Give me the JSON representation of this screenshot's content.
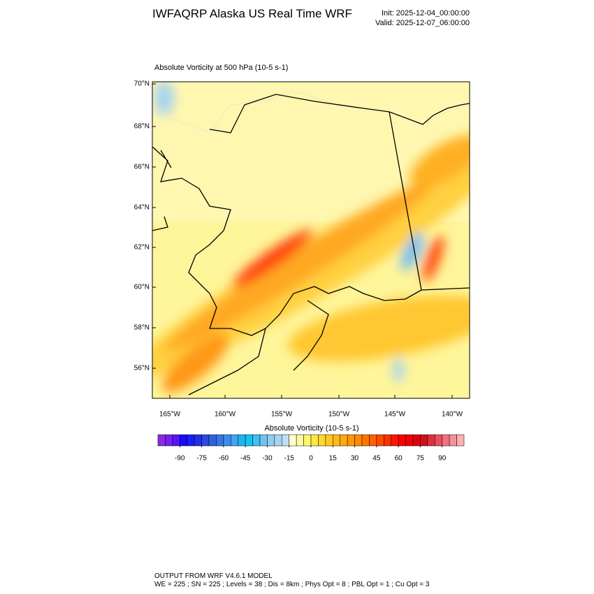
{
  "header": {
    "title": "IWFAQRP Alaska US Real Time WRF",
    "init": "Init: 2025-12-04_00:00:00",
    "valid": "Valid: 2025-12-07_06:00:00"
  },
  "map": {
    "subtitle": "Absolute Vorticity at 500 hPa   (10-5 s-1)",
    "lat_labels": [
      "70°N",
      "68°N",
      "66°N",
      "64°N",
      "62°N",
      "60°N",
      "58°N",
      "56°N"
    ],
    "lon_labels": [
      "165°W",
      "160°W",
      "155°W",
      "150°W",
      "145°W",
      "140°W"
    ]
  },
  "colorbar": {
    "title": "Absolute Vorticity  (10-5 s-1)",
    "range": [
      -105,
      105
    ],
    "ticks": [
      -90,
      -75,
      -60,
      -45,
      -30,
      -15,
      0,
      15,
      30,
      45,
      60,
      75,
      90
    ],
    "colors": [
      "#8a2be2",
      "#7a1ff0",
      "#5a14f5",
      "#1a0aff",
      "#1a1ef5",
      "#2030e8",
      "#2a4ae0",
      "#3060e0",
      "#3676e6",
      "#3c8cec",
      "#44a4f0",
      "#1eb4f0",
      "#10c4f2",
      "#40bff0",
      "#6ec4ee",
      "#92cdee",
      "#a8d4ee",
      "#c0e0f2",
      "#ffffd0",
      "#fffaa0",
      "#fff570",
      "#ffe840",
      "#ffd830",
      "#ffc820",
      "#ffb818",
      "#ffa810",
      "#ff9808",
      "#ff8804",
      "#ff7400",
      "#ff6000",
      "#ff4a00",
      "#ff3000",
      "#ff1400",
      "#ff0000",
      "#f00000",
      "#e00010",
      "#d01018",
      "#dc3040",
      "#e85060",
      "#f07080",
      "#f69098",
      "#fcb0b4"
    ]
  },
  "footer": {
    "line1": "OUTPUT FROM WRF V4.6.1 MODEL",
    "line2": "WE = 225 ; SN = 225 ; Levels = 38 ; Dis = 8km ; Phys Opt = 8 ; PBL Opt = 1 ; Cu Opt = 3"
  }
}
